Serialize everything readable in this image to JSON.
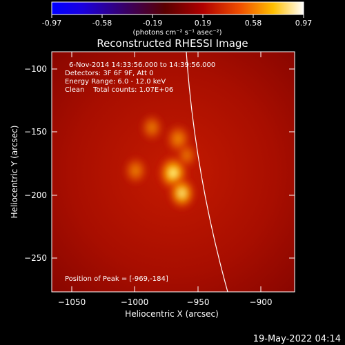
{
  "colorbar": {
    "ticks": [
      "-0.97",
      "-0.58",
      "-0.19",
      "0.19",
      "0.58",
      "0.97"
    ],
    "unit_label": "(photons cm⁻² s⁻¹ asec⁻²)"
  },
  "plot": {
    "title": "Reconstructed RHESSI Image",
    "xlabel": "Heliocentric X (arcsec)",
    "ylabel": "Heliocentric Y (arcsec)",
    "x_ticks": [
      "−1050",
      "−1000",
      "−950",
      "−900"
    ],
    "y_ticks": [
      "−100",
      "−150",
      "−200",
      "−250"
    ]
  },
  "annotations": {
    "time_range": "6-Nov-2014 14:33:56.000 to 14:39:56.000",
    "detectors": "Detectors: 3F 6F 9F, Att 0",
    "energy_range": "Energy Range: 6.0 - 12.0 keV",
    "algorithm_counts": "Clean    Total counts: 1.07E+06",
    "peak_position": "Position of Peak = [-969,-184]"
  },
  "footer": {
    "timestamp": "19-May-2022 04:14"
  },
  "image_data": {
    "x_range": [
      -1066,
      -872
    ],
    "y_range": [
      -278,
      -88
    ],
    "peak": [
      -969,
      -184
    ],
    "color_range": [
      -0.97,
      0.97
    ],
    "sources": [
      {
        "x": -969,
        "y": -184,
        "intensity": 1.0
      },
      {
        "x": -962,
        "y": -200,
        "intensity": 0.8
      },
      {
        "x": -965,
        "y": -157,
        "intensity": 0.6
      },
      {
        "x": -986,
        "y": -148,
        "intensity": 0.45
      },
      {
        "x": -999,
        "y": -182,
        "intensity": 0.5
      },
      {
        "x": -958,
        "y": -170,
        "intensity": 0.35
      }
    ]
  }
}
